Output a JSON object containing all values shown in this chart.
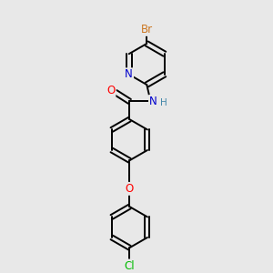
{
  "background_color": "#e8e8e8",
  "atom_colors": {
    "C": "#000000",
    "N": "#0000cc",
    "O": "#ff0000",
    "Br": "#cc7722",
    "Cl": "#00bb00",
    "H": "#4488aa"
  },
  "bond_color": "#000000",
  "font_size": 8.5,
  "figsize": [
    3.0,
    3.0
  ],
  "dpi": 100,
  "xlim": [
    0,
    10
  ],
  "ylim": [
    0,
    10
  ]
}
